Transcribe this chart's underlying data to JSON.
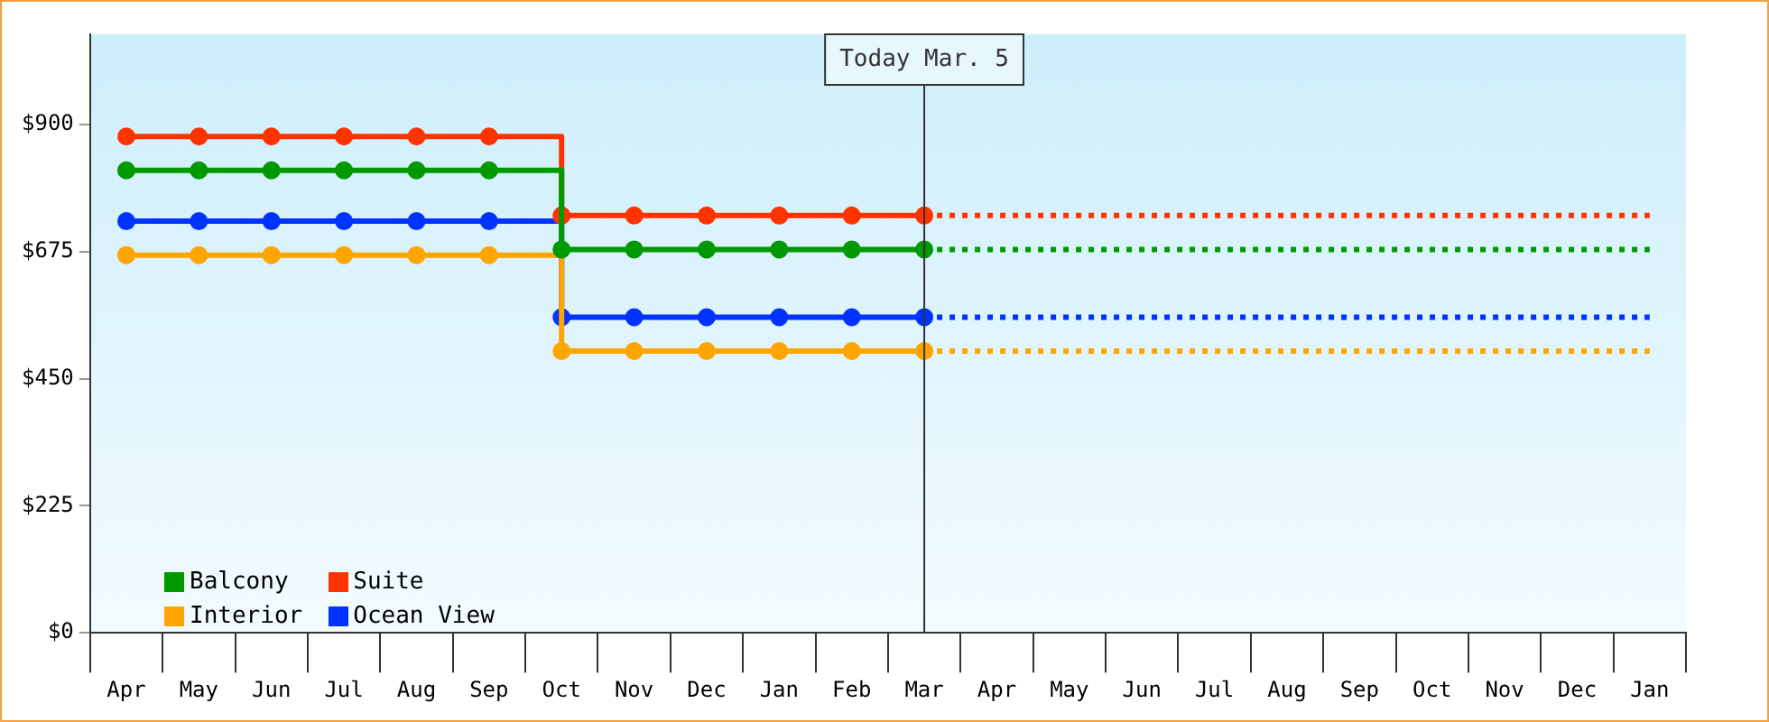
{
  "chart_data": {
    "type": "step",
    "categories": [
      "Apr",
      "May",
      "Jun",
      "Jul",
      "Aug",
      "Sep",
      "Oct",
      "Nov",
      "Dec",
      "Jan",
      "Feb",
      "Mar",
      "Apr",
      "May",
      "Jun",
      "Jul",
      "Aug",
      "Sep",
      "Oct",
      "Nov",
      "Dec",
      "Jan"
    ],
    "ylim": [
      0,
      1060
    ],
    "yticks": [
      {
        "value": 0,
        "label": "$0"
      },
      {
        "value": 225,
        "label": "$225"
      },
      {
        "value": 450,
        "label": "$450"
      },
      {
        "value": 675,
        "label": "$675"
      },
      {
        "value": 900,
        "label": "$900"
      }
    ],
    "grid": false,
    "legend": "bottom left",
    "marker": "circle",
    "line_style": "solid",
    "series": [
      {
        "name": "Balcony",
        "color": "#009900",
        "values": [
          819,
          819,
          819,
          819,
          819,
          819,
          679,
          679,
          679,
          679,
          679,
          679,
          null,
          null,
          null,
          null,
          null,
          null,
          null,
          null,
          null,
          null
        ]
      },
      {
        "name": "Suite",
        "color": "#ff3300",
        "values": [
          879,
          879,
          879,
          879,
          879,
          879,
          739,
          739,
          739,
          739,
          739,
          739,
          null,
          null,
          null,
          null,
          null,
          null,
          null,
          null,
          null,
          null
        ]
      },
      {
        "name": "Interior",
        "color": "#ffa500",
        "values": [
          669,
          669,
          669,
          669,
          669,
          669,
          499,
          499,
          499,
          499,
          499,
          499,
          null,
          null,
          null,
          null,
          null,
          null,
          null,
          null,
          null,
          null
        ]
      },
      {
        "name": "Ocean View",
        "color": "#0033ff",
        "values": [
          729,
          729,
          729,
          729,
          729,
          729,
          559,
          559,
          559,
          559,
          559,
          559,
          null,
          null,
          null,
          null,
          null,
          null,
          null,
          null,
          null,
          null
        ]
      },
      {
        "color": "#ff3300",
        "values": [
          null,
          null,
          null,
          null,
          null,
          null,
          null,
          null,
          null,
          null,
          null,
          739,
          739,
          739,
          739,
          739,
          739,
          739,
          739,
          739,
          739,
          739
        ],
        "line_style": "dotted",
        "marker": "none"
      },
      {
        "color": "#009900",
        "values": [
          null,
          null,
          null,
          null,
          null,
          null,
          null,
          null,
          null,
          null,
          null,
          679,
          679,
          679,
          679,
          679,
          679,
          679,
          679,
          679,
          679,
          679
        ],
        "line_style": "dotted",
        "marker": "none"
      },
      {
        "color": "#0033ff",
        "values": [
          null,
          null,
          null,
          null,
          null,
          null,
          null,
          null,
          null,
          null,
          null,
          559,
          559,
          559,
          559,
          559,
          559,
          559,
          559,
          559,
          559,
          559
        ],
        "line_style": "dotted",
        "marker": "none"
      },
      {
        "color": "#ffa500",
        "values": [
          null,
          null,
          null,
          null,
          null,
          null,
          null,
          null,
          null,
          null,
          null,
          499,
          499,
          499,
          499,
          499,
          499,
          499,
          499,
          499,
          499,
          499
        ],
        "line_style": "dotted",
        "marker": "none"
      }
    ],
    "ref_lines": [
      {
        "axis": "x",
        "value": "Mar",
        "label": "Today Mar. 5",
        "color": "#333333"
      }
    ]
  }
}
